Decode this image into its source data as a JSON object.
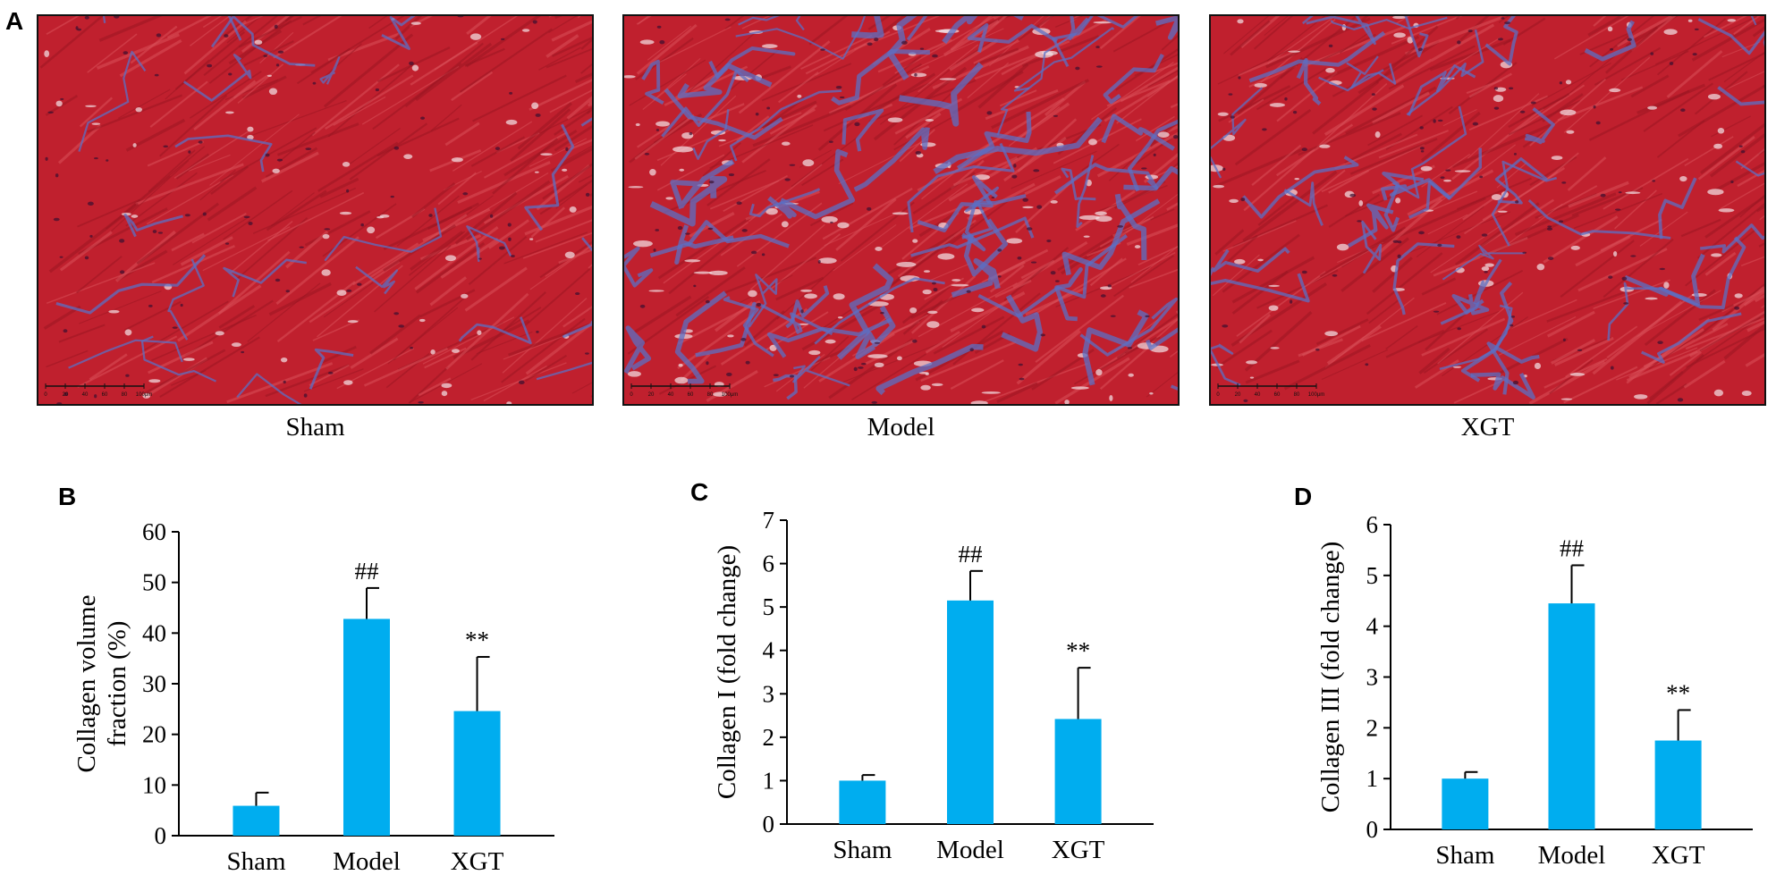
{
  "panel_a": {
    "letter": "A",
    "images": [
      {
        "label": "Sham",
        "fibrosis": "low"
      },
      {
        "label": "Model",
        "fibrosis": "high"
      },
      {
        "label": "XGT",
        "fibrosis": "medium"
      }
    ],
    "scale_ticks": [
      "0",
      "20",
      "40",
      "60",
      "80",
      "100μm"
    ]
  },
  "colors": {
    "bar": "#00adef",
    "muscle": "#c0202e",
    "collagen": "#5b6fc4",
    "axis": "#000000"
  },
  "chart_data": [
    {
      "panel": "B",
      "type": "bar",
      "categories": [
        "Sham",
        "Model",
        "XGT"
      ],
      "values": [
        5.9,
        42.8,
        24.6
      ],
      "errors": [
        2.6,
        6.1,
        10.7
      ],
      "annotations": [
        "",
        "##",
        "**"
      ],
      "ylabel_lines": [
        "Collagen volume",
        "fraction (%)"
      ],
      "ylim": [
        0,
        60
      ],
      "yticks": [
        0,
        10,
        20,
        30,
        40,
        50,
        60
      ]
    },
    {
      "panel": "C",
      "type": "bar",
      "categories": [
        "Sham",
        "Model",
        "XGT"
      ],
      "values": [
        1.0,
        5.15,
        2.42
      ],
      "errors": [
        0.13,
        0.68,
        1.18
      ],
      "annotations": [
        "",
        "##",
        "**"
      ],
      "ylabel_lines": [
        "Collagen I (fold change)"
      ],
      "ylim": [
        0,
        7
      ],
      "yticks": [
        0,
        1,
        2,
        3,
        4,
        5,
        6,
        7
      ]
    },
    {
      "panel": "D",
      "type": "bar",
      "categories": [
        "Sham",
        "Model",
        "XGT"
      ],
      "values": [
        1.0,
        4.45,
        1.75
      ],
      "errors": [
        0.13,
        0.75,
        0.6
      ],
      "annotations": [
        "",
        "##",
        "**"
      ],
      "ylabel_lines": [
        "Collagen III (fold change)"
      ],
      "ylim": [
        0,
        6
      ],
      "yticks": [
        0,
        1,
        2,
        3,
        4,
        5,
        6
      ]
    }
  ]
}
